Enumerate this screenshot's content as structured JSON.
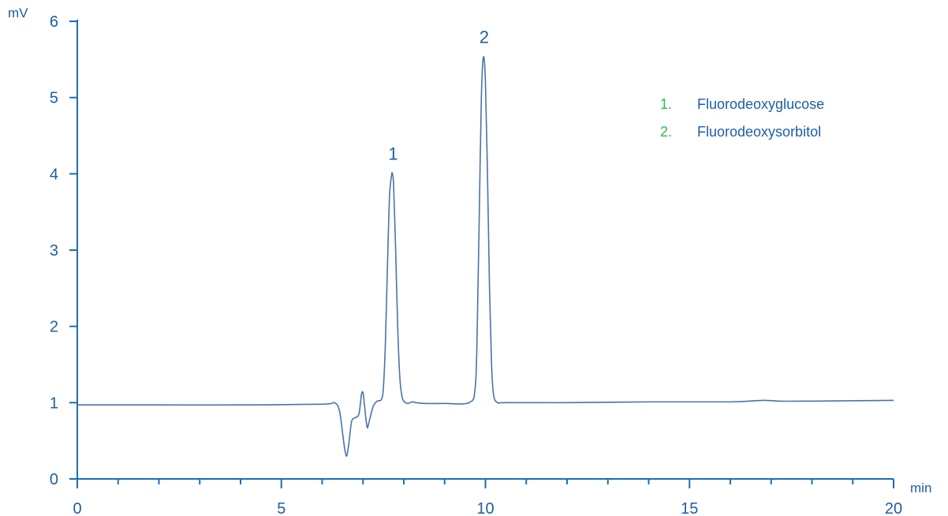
{
  "colors": {
    "axis": "#1b6fb5",
    "trace": "#4a72ad",
    "text": "#1b5fa6",
    "legend_number": "#2bbf4a"
  },
  "chart_data": {
    "type": "line",
    "title": "",
    "xlabel": "min",
    "ylabel": "mV",
    "xlim": [
      0,
      20
    ],
    "ylim": [
      0,
      6
    ],
    "grid": false,
    "x_ticks": [
      0,
      5,
      10,
      15,
      20
    ],
    "y_ticks": [
      0,
      1,
      2,
      3,
      4,
      5,
      6
    ],
    "x_tick_labels": [
      "0",
      "5",
      "10",
      "15",
      "20"
    ],
    "y_tick_labels": [
      "0",
      "1",
      "2",
      "3",
      "4",
      "5",
      "6"
    ],
    "legend_position": "top-right",
    "legend": [
      {
        "number": "1.",
        "name": "Fluorodeoxyglucose"
      },
      {
        "number": "2.",
        "name": "Fluorodeoxysorbitol"
      }
    ],
    "peaks": [
      {
        "label": "1",
        "retention_time": 7.72,
        "height": 4.0
      },
      {
        "label": "2",
        "retention_time": 9.95,
        "height": 5.53
      }
    ],
    "series": [
      {
        "x": [
          0,
          2,
          4,
          6.0,
          6.3,
          6.42,
          6.5,
          6.55,
          6.6,
          6.65,
          6.72,
          6.8,
          6.9,
          6.96,
          7.0,
          7.04,
          7.1,
          7.15,
          7.25,
          7.35,
          7.45,
          7.5,
          7.55,
          7.6,
          7.65,
          7.7,
          7.72,
          7.75,
          7.8,
          7.85,
          7.9,
          7.95,
          8.0,
          8.1,
          8.2,
          8.3,
          8.5,
          9.0,
          9.6,
          9.75,
          9.8,
          9.85,
          9.9,
          9.95,
          10.0,
          10.05,
          10.1,
          10.15,
          10.2,
          10.3,
          10.5,
          12,
          14,
          16,
          16.8,
          17.2,
          18,
          20
        ],
        "y": [
          0.97,
          0.97,
          0.97,
          0.98,
          1.0,
          0.9,
          0.6,
          0.4,
          0.3,
          0.45,
          0.75,
          0.8,
          0.85,
          1.1,
          1.13,
          0.95,
          0.68,
          0.75,
          0.95,
          1.02,
          1.04,
          1.2,
          1.8,
          2.8,
          3.7,
          3.98,
          4.0,
          3.85,
          3.0,
          2.0,
          1.35,
          1.1,
          1.02,
          0.99,
          1.01,
          1.0,
          0.99,
          0.99,
          1.0,
          1.2,
          2.0,
          3.5,
          5.0,
          5.53,
          5.2,
          4.0,
          2.5,
          1.5,
          1.1,
          1.0,
          1.0,
          1.0,
          1.01,
          1.01,
          1.03,
          1.02,
          1.02,
          1.03
        ]
      }
    ]
  }
}
